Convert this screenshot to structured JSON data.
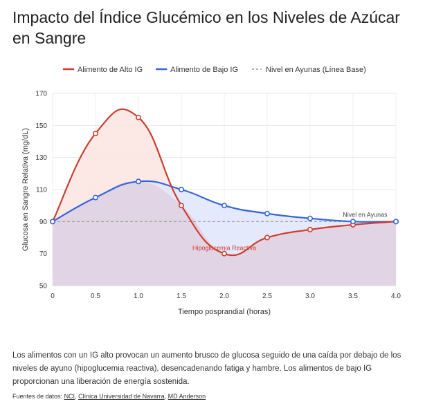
{
  "chart_data": {
    "type": "line",
    "title": "Impacto del Índice Glucémico en los Niveles de Azúcar en Sangre",
    "xlabel": "Tiempo posprandial (horas)",
    "ylabel": "Glucosa en Sangre Relativa (mg/dL)",
    "xlim": [
      0,
      4
    ],
    "ylim": [
      50,
      170
    ],
    "x_ticks": [
      "0",
      "0.5",
      "1.0",
      "1.5",
      "2.0",
      "2.5",
      "3.0",
      "3.5",
      "4.0"
    ],
    "y_ticks": [
      "50",
      "70",
      "90",
      "110",
      "130",
      "150",
      "170"
    ],
    "grid": true,
    "legend_position": "top",
    "x": [
      0,
      0.5,
      1.0,
      1.5,
      2.0,
      2.5,
      3.0,
      3.5,
      4.0
    ],
    "series": [
      {
        "name": "Alimento de Alto IG",
        "color": "#cc3d2f",
        "fill": "#fbe5e2",
        "values": [
          90,
          145,
          155,
          100,
          70,
          80,
          85,
          88,
          90
        ]
      },
      {
        "name": "Alimento de Bajo IG",
        "color": "#3565d6",
        "fill": "#dfe6fa",
        "values": [
          90,
          105,
          115,
          110,
          100,
          95,
          92,
          90,
          90
        ]
      },
      {
        "name": "Nivel en Ayunas (Línea Base)",
        "color": "#999999",
        "dashed": true,
        "values": [
          90,
          90,
          90,
          90,
          90,
          90,
          90,
          90,
          90
        ]
      }
    ],
    "annotations": [
      {
        "text": "Nivel en Ayunas",
        "x": 3.9,
        "y": 90,
        "color": "#444444"
      },
      {
        "text": "Hipoglucemia Reactiva",
        "x": 2.0,
        "y": 70,
        "color": "#cc3d2f"
      }
    ],
    "under_fill_color": "#e0d3e4"
  },
  "description": "Los alimentos con un IG alto provocan un aumento brusco de glucosa seguido de una caída por debajo de los niveles de ayuno (hipoglucemia reactiva), desencadenando fatiga y hambre. Los alimentos de bajo IG proporcionan una liberación de energía sostenida.",
  "sources": {
    "prefix": "Fuentes de datos: ",
    "links": [
      "NCI",
      "Clínica Universidad de Navarra",
      "MD Anderson"
    ]
  }
}
